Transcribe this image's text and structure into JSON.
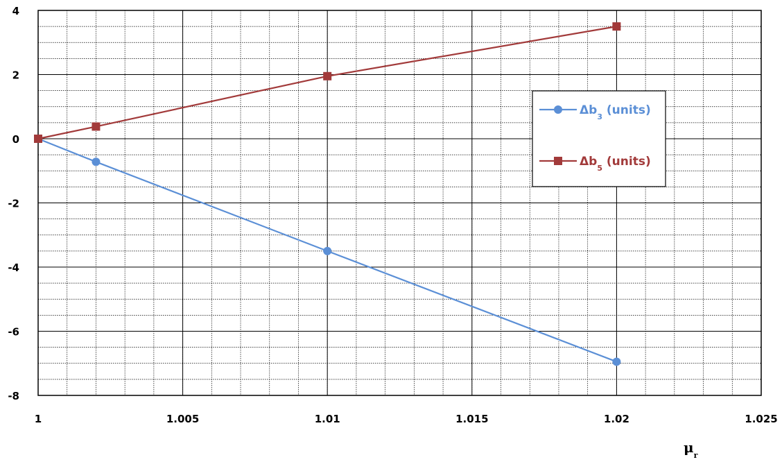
{
  "chart_data": {
    "type": "line",
    "xlabel": {
      "main": "μ",
      "sub": "r"
    },
    "ylabel": "",
    "xlim": [
      1,
      1.025
    ],
    "ylim": [
      -8,
      4
    ],
    "x_major_ticks": [
      1,
      1.005,
      1.01,
      1.015,
      1.02,
      1.025
    ],
    "x_tick_labels": [
      "1",
      "1.005",
      "1.01",
      "1.015",
      "1.02",
      "1.025"
    ],
    "y_major_ticks": [
      -8,
      -6,
      -4,
      -2,
      0,
      2,
      4
    ],
    "y_tick_labels": [
      "-8",
      "-6",
      "-4",
      "-2",
      "0",
      "2",
      "4"
    ],
    "x_minor_step": 0.001,
    "y_minor_step": 0.5,
    "grid": true,
    "legend_position": "right",
    "series": [
      {
        "name": "Δb",
        "name_sub": "3",
        "name_suffix": " (units)",
        "marker": "circle",
        "color": "#5b8fd6",
        "points": [
          {
            "x": 1.0,
            "y": 0.0
          },
          {
            "x": 1.002,
            "y": -0.72
          },
          {
            "x": 1.01,
            "y": -3.5
          },
          {
            "x": 1.02,
            "y": -6.95
          }
        ]
      },
      {
        "name": "Δb",
        "name_sub": "5",
        "name_suffix": " (units)",
        "marker": "square",
        "color": "#a23a3a",
        "points": [
          {
            "x": 1.0,
            "y": 0.0
          },
          {
            "x": 1.002,
            "y": 0.38
          },
          {
            "x": 1.01,
            "y": 1.95
          },
          {
            "x": 1.02,
            "y": 3.5
          }
        ]
      }
    ]
  }
}
